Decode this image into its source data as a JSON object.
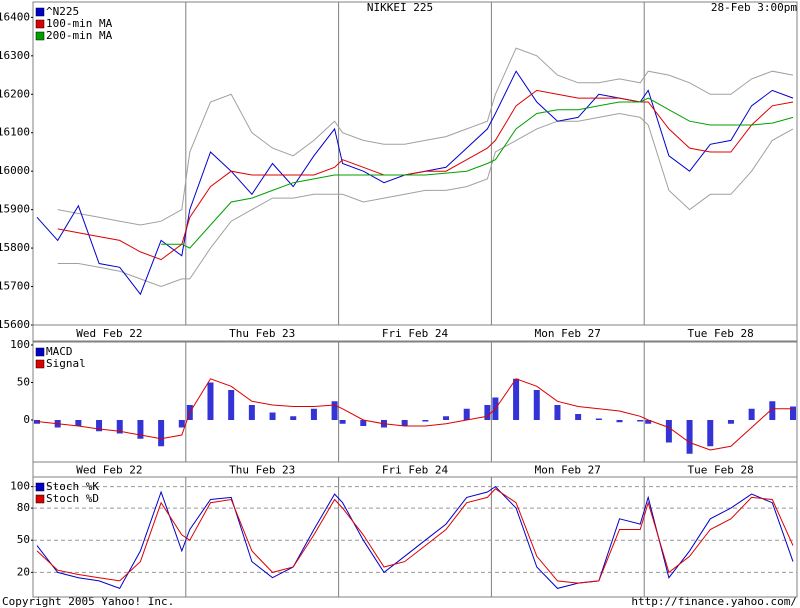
{
  "chart_data": [
    {
      "type": "line",
      "title": "NIKKEI 225",
      "annotation": "28-Feb 3:00pm",
      "categories": [
        null,
        null,
        null,
        null,
        "Wed Feb 22",
        null,
        null,
        null,
        null,
        null,
        null,
        null,
        "Thu Feb 23",
        null,
        null,
        null,
        null,
        null,
        null,
        null,
        "Fri Feb 24",
        null,
        null,
        null,
        null,
        null,
        null,
        null,
        "Mon Feb 27",
        null,
        null,
        null,
        null,
        null,
        null,
        null,
        "Tue Feb 28",
        null,
        null,
        null
      ],
      "ylim": [
        15600,
        16440
      ],
      "yticks": [
        15600,
        15700,
        15800,
        15900,
        16000,
        16100,
        16200,
        16300,
        16400
      ],
      "series": [
        {
          "color": "#a0a0a0",
          "values": [
            null,
            15900,
            15890,
            15880,
            15870,
            15860,
            15870,
            15900,
            16050,
            16180,
            16200,
            16100,
            16060,
            16040,
            16080,
            16130,
            16100,
            16080,
            16070,
            16070,
            16080,
            16090,
            16110,
            16130,
            16200,
            16320,
            16300,
            16250,
            16230,
            16230,
            16240,
            16230,
            16260,
            16250,
            16230,
            16200,
            16200,
            16240,
            16260,
            16250
          ]
        },
        {
          "color": "#a0a0a0",
          "values": [
            null,
            15760,
            15760,
            15750,
            15740,
            15720,
            15700,
            15720,
            15720,
            15800,
            15870,
            15900,
            15930,
            15930,
            15940,
            15940,
            15940,
            15920,
            15930,
            15940,
            15950,
            15950,
            15960,
            15980,
            16050,
            16080,
            16110,
            16130,
            16130,
            16140,
            16150,
            16140,
            16120,
            15950,
            15900,
            15940,
            15940,
            16000,
            16080,
            16110
          ]
        },
        {
          "name": "^N225",
          "color": "#0000cc",
          "values": [
            15880,
            15820,
            15910,
            15760,
            15750,
            15680,
            15820,
            15780,
            15900,
            16050,
            16000,
            15940,
            16020,
            15960,
            16040,
            16110,
            16020,
            16000,
            15970,
            15990,
            16000,
            16010,
            16060,
            16110,
            16150,
            16260,
            16180,
            16130,
            16140,
            16200,
            16190,
            16180,
            16210,
            16040,
            16000,
            16070,
            16080,
            16170,
            16210,
            16190
          ]
        },
        {
          "name": "100-min MA",
          "color": "#dd0000",
          "values": [
            null,
            15850,
            15840,
            15830,
            15820,
            15790,
            15770,
            15810,
            15880,
            15960,
            16000,
            15990,
            15990,
            15990,
            15990,
            16010,
            16030,
            16010,
            15990,
            15990,
            16000,
            16000,
            16030,
            16060,
            16080,
            16170,
            16210,
            16200,
            16190,
            16190,
            16190,
            16180,
            16180,
            16110,
            16060,
            16050,
            16050,
            16120,
            16170,
            16180
          ]
        },
        {
          "name": "200-min MA",
          "color": "#00a000",
          "values": [
            null,
            null,
            null,
            null,
            null,
            null,
            15810,
            15810,
            15800,
            15860,
            15920,
            15930,
            15950,
            15970,
            15980,
            15990,
            15990,
            15990,
            15990,
            15990,
            15990,
            15995,
            16000,
            16020,
            16030,
            16110,
            16150,
            16160,
            16160,
            16170,
            16180,
            16180,
            16190,
            16160,
            16130,
            16120,
            16120,
            16120,
            16125,
            16140
          ]
        }
      ]
    },
    {
      "type": "combo",
      "categories": [
        null,
        null,
        null,
        null,
        "Wed Feb 22",
        null,
        null,
        null,
        null,
        null,
        null,
        null,
        "Thu Feb 23",
        null,
        null,
        null,
        null,
        null,
        null,
        null,
        "Fri Feb 24",
        null,
        null,
        null,
        null,
        null,
        null,
        null,
        "Mon Feb 27",
        null,
        null,
        null,
        null,
        null,
        null,
        null,
        "Tue Feb 28",
        null,
        null,
        null
      ],
      "ylim": [
        -56,
        104
      ],
      "yticks": [
        0,
        50,
        100
      ],
      "series": [
        {
          "name": "MACD",
          "color": "#0000cc",
          "mark": "bar",
          "values": [
            -5,
            -10,
            -8,
            -15,
            -18,
            -25,
            -35,
            -10,
            20,
            50,
            40,
            20,
            10,
            5,
            15,
            25,
            -5,
            -8,
            -10,
            -8,
            -2,
            5,
            15,
            20,
            30,
            55,
            40,
            20,
            8,
            2,
            -3,
            -2,
            -5,
            -30,
            -45,
            -35,
            -5,
            15,
            25,
            18
          ]
        },
        {
          "name": "Signal",
          "color": "#dd0000",
          "mark": "line",
          "values": [
            -2,
            -5,
            -8,
            -12,
            -15,
            -20,
            -25,
            -20,
            10,
            55,
            45,
            25,
            20,
            18,
            18,
            20,
            15,
            0,
            -5,
            -8,
            -8,
            -5,
            0,
            5,
            15,
            55,
            45,
            25,
            18,
            15,
            12,
            5,
            0,
            -10,
            -30,
            -40,
            -35,
            -10,
            15,
            15
          ]
        }
      ]
    },
    {
      "type": "line",
      "ylim": [
        -3,
        109
      ],
      "yticks": [
        20,
        50,
        80,
        100
      ],
      "grid": true,
      "series": [
        {
          "name": "Stoch %K",
          "color": "#0000cc",
          "values": [
            45,
            20,
            15,
            12,
            5,
            40,
            95,
            40,
            60,
            88,
            90,
            30,
            15,
            25,
            60,
            93,
            85,
            50,
            20,
            35,
            50,
            65,
            90,
            95,
            100,
            80,
            25,
            5,
            10,
            12,
            70,
            65,
            90,
            15,
            40,
            70,
            80,
            93,
            85,
            30
          ]
        },
        {
          "name": "Stoch %D",
          "color": "#dd0000",
          "values": [
            40,
            22,
            18,
            15,
            12,
            30,
            85,
            55,
            50,
            85,
            88,
            40,
            20,
            25,
            55,
            88,
            80,
            55,
            25,
            30,
            45,
            60,
            85,
            90,
            98,
            85,
            35,
            12,
            10,
            12,
            60,
            60,
            85,
            20,
            35,
            60,
            70,
            90,
            88,
            45
          ]
        }
      ]
    }
  ],
  "footer": {
    "left": "Copyright 2005 Yahoo! Inc.",
    "right": "http://finance.yahoo.com/"
  }
}
